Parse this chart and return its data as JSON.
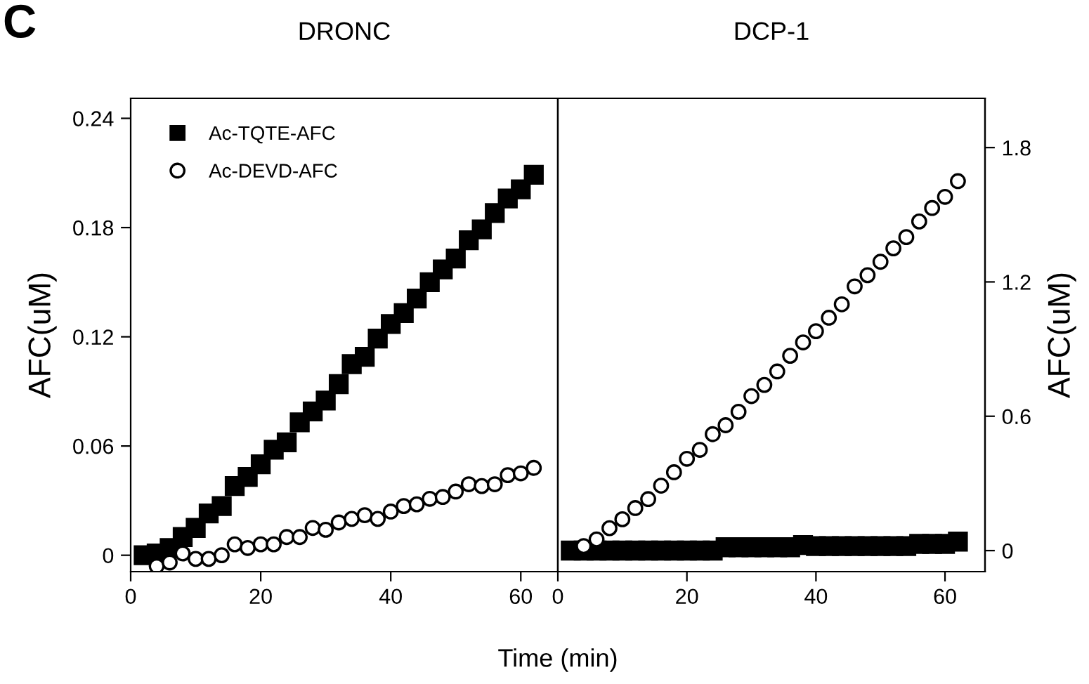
{
  "chart_data": [
    {
      "type": "scatter",
      "title": "DRONC",
      "xlabel": "Time (min)",
      "ylabel": "AFC(uM)",
      "annotations": [
        "C"
      ],
      "xlim": [
        0,
        65.7
      ],
      "xticks": [
        0,
        20,
        40,
        60
      ],
      "ylim": [
        -0.009,
        0.251
      ],
      "yticks": [
        0,
        0.06,
        0.12,
        0.18,
        0.24
      ],
      "grid": false,
      "legend": "top left",
      "series": [
        {
          "name": "Ac-TQTE-AFC",
          "color": "#000000",
          "marker": "square",
          "x": [
            2,
            4,
            6,
            8,
            10,
            12,
            14,
            16,
            18,
            20,
            22,
            24,
            26,
            28,
            30,
            32,
            34,
            36,
            38,
            40,
            42,
            44,
            46,
            48,
            50,
            52,
            54,
            56,
            58,
            60,
            62
          ],
          "values": [
            0,
            0.001,
            0.004,
            0.01,
            0.015,
            0.023,
            0.027,
            0.038,
            0.043,
            0.05,
            0.058,
            0.062,
            0.073,
            0.079,
            0.085,
            0.094,
            0.105,
            0.109,
            0.119,
            0.127,
            0.133,
            0.141,
            0.15,
            0.157,
            0.163,
            0.173,
            0.179,
            0.188,
            0.196,
            0.201,
            0.209
          ]
        },
        {
          "name": "Ac-DEVD-AFC",
          "color": "#000000",
          "marker": "circle",
          "x": [
            4,
            6,
            8,
            10,
            12,
            14,
            16,
            18,
            20,
            22,
            24,
            26,
            28,
            30,
            32,
            34,
            36,
            38,
            40,
            42,
            44,
            46,
            48,
            50,
            52,
            54,
            56,
            58,
            60,
            62
          ],
          "values": [
            -0.006,
            -0.004,
            0.001,
            -0.002,
            -0.002,
            0,
            0.006,
            0.004,
            0.006,
            0.006,
            0.01,
            0.01,
            0.015,
            0.014,
            0.018,
            0.02,
            0.022,
            0.02,
            0.024,
            0.027,
            0.028,
            0.031,
            0.032,
            0.035,
            0.039,
            0.038,
            0.039,
            0.044,
            0.045,
            0.048
          ]
        }
      ]
    },
    {
      "type": "scatter",
      "title": "DCP-1",
      "y2label": "AFC(uM)",
      "xlim": [
        0,
        66.2
      ],
      "xticks": [
        0,
        20,
        40,
        60
      ],
      "y2lim": [
        -0.094,
        2.02
      ],
      "y2ticks": [
        0,
        0.6,
        1.2,
        1.8
      ],
      "grid": false,
      "series": [
        {
          "color": "#000000",
          "marker": "square",
          "axis": "y2",
          "x": [
            2,
            4,
            6,
            8,
            10,
            12,
            14,
            16,
            18,
            20,
            22,
            24,
            26,
            28,
            30,
            32,
            34,
            36,
            38,
            40,
            42,
            44,
            46,
            48,
            50,
            52,
            54,
            56,
            58,
            60,
            62
          ],
          "values": [
            0,
            0,
            0,
            0,
            0,
            0,
            0,
            0,
            0,
            0,
            0,
            0,
            0.015,
            0.015,
            0.015,
            0.015,
            0.015,
            0.015,
            0.025,
            0.02,
            0.02,
            0.02,
            0.02,
            0.02,
            0.02,
            0.02,
            0.02,
            0.03,
            0.03,
            0.03,
            0.04
          ]
        },
        {
          "color": "#000000",
          "marker": "circle",
          "axis": "y2",
          "x": [
            4,
            6,
            8,
            10,
            12,
            14,
            16,
            18,
            20,
            22,
            24,
            26,
            28,
            30,
            32,
            34,
            36,
            38,
            40,
            42,
            44,
            46,
            48,
            50,
            52,
            54,
            56,
            58,
            60,
            62
          ],
          "values": [
            0.02,
            0.05,
            0.1,
            0.14,
            0.19,
            0.23,
            0.29,
            0.35,
            0.41,
            0.45,
            0.52,
            0.56,
            0.62,
            0.69,
            0.74,
            0.8,
            0.87,
            0.93,
            0.98,
            1.04,
            1.1,
            1.18,
            1.23,
            1.29,
            1.35,
            1.4,
            1.47,
            1.53,
            1.58,
            1.65
          ]
        }
      ]
    }
  ]
}
